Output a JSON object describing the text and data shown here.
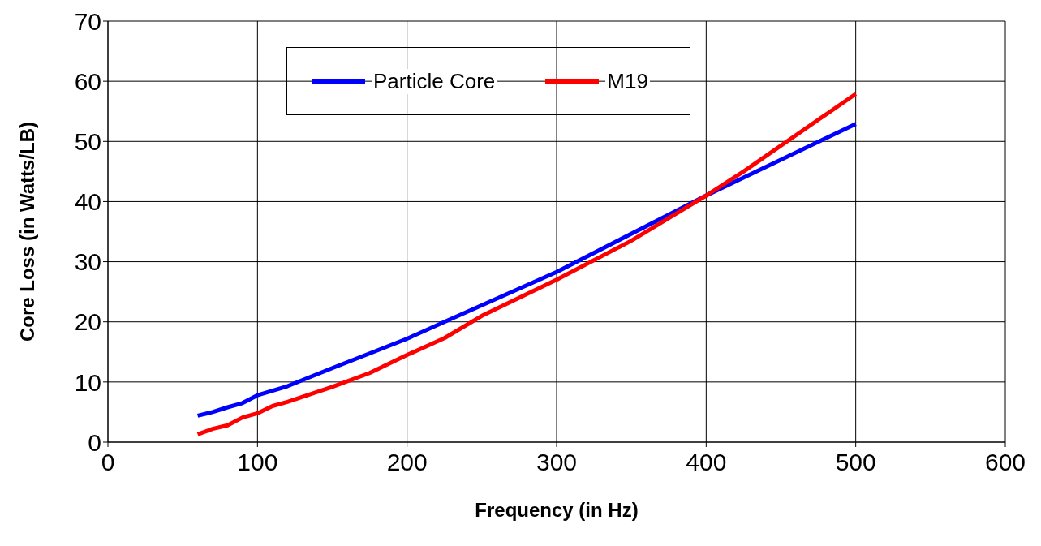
{
  "chart_data": {
    "type": "line",
    "xlabel": "Frequency (in Hz)",
    "ylabel": "Core Loss (in Watts/LB)",
    "xlim": [
      0,
      600
    ],
    "xticks": [
      0,
      100,
      200,
      300,
      400,
      500,
      600
    ],
    "ylim": [
      0,
      70
    ],
    "yticks": [
      0,
      10,
      20,
      30,
      40,
      50,
      60,
      70
    ],
    "grid": true,
    "legend": "top left",
    "marker": "none",
    "line_style": "solid",
    "series": [
      {
        "name": "Particle Core",
        "color": "#0000ff",
        "x": [
          60,
          70,
          80,
          90,
          100,
          120,
          150,
          200,
          225,
          300,
          400,
          500
        ],
        "values": [
          4.4,
          5,
          5.8,
          6.5,
          7.8,
          9.3,
          12.3,
          17.2,
          20,
          28.3,
          41,
          52.9
        ]
      },
      {
        "name": "M19",
        "color": "#ff0000",
        "x": [
          60,
          70,
          80,
          90,
          100,
          110,
          120,
          150,
          175,
          200,
          225,
          250,
          300,
          350,
          400,
          425,
          500
        ],
        "values": [
          1.3,
          2.2,
          2.8,
          4.1,
          4.8,
          6,
          6.7,
          9.2,
          11.5,
          14.5,
          17.3,
          21,
          27,
          33.5,
          41,
          45,
          57.9
        ]
      }
    ]
  }
}
